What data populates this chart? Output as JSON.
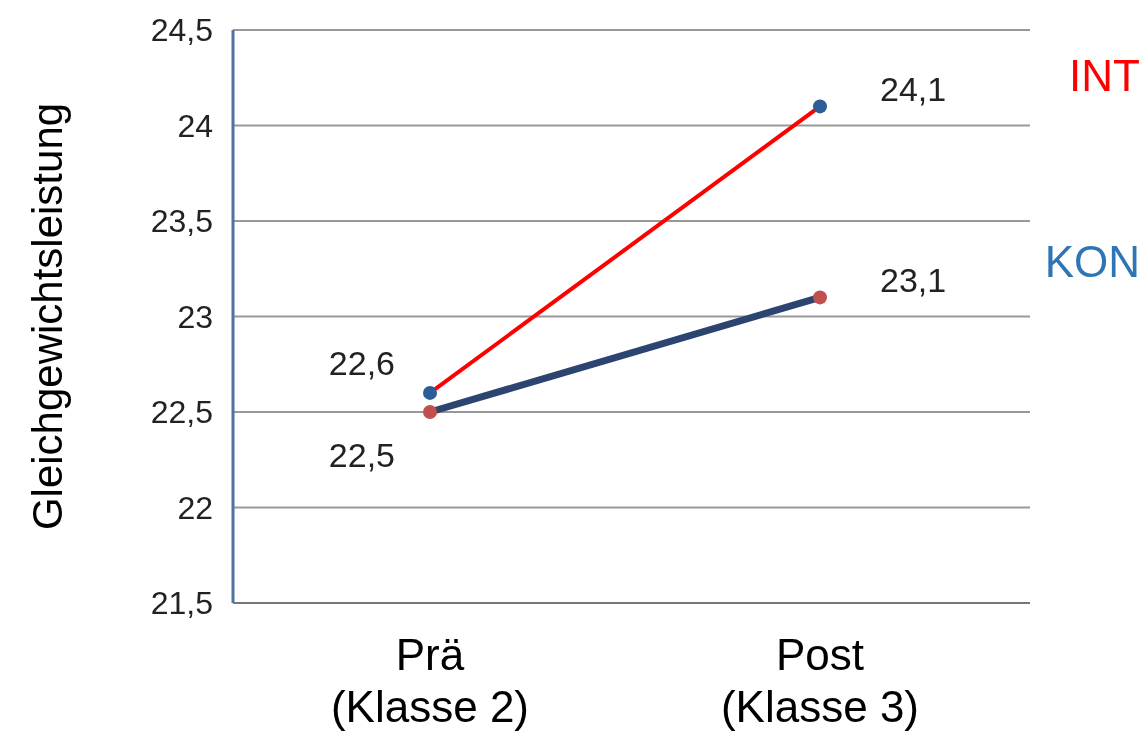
{
  "chart_data": {
    "type": "line",
    "ylabel": "Gleichgewichtsleistung",
    "categories": [
      "Prä\n(Klasse 2)",
      "Post\n(Klasse 3)"
    ],
    "series": [
      {
        "name": "INT",
        "color": "#ff0000",
        "colors": [
          "#2e5c99",
          "#2e5c99"
        ],
        "values": [
          22.6,
          24.1
        ],
        "value_labels": [
          "22,6",
          "24,1"
        ]
      },
      {
        "name": "KON",
        "color": "#2b4470",
        "colors": [
          "#c0504d",
          "#c0504d"
        ],
        "values": [
          22.5,
          23.1
        ],
        "value_labels": [
          "22,5",
          "23,1"
        ]
      }
    ],
    "ylim": [
      21.5,
      24.5
    ],
    "yticks": [
      {
        "value": 21.5,
        "label": "21,5"
      },
      {
        "value": 22,
        "label": "22"
      },
      {
        "value": 22.5,
        "label": "22,5"
      },
      {
        "value": 23,
        "label": "23"
      },
      {
        "value": 23.5,
        "label": "23,5"
      },
      {
        "value": 24,
        "label": "24"
      },
      {
        "value": 24.5,
        "label": "24,5"
      }
    ],
    "grid": "y",
    "marker": "circle",
    "legend": "right"
  }
}
